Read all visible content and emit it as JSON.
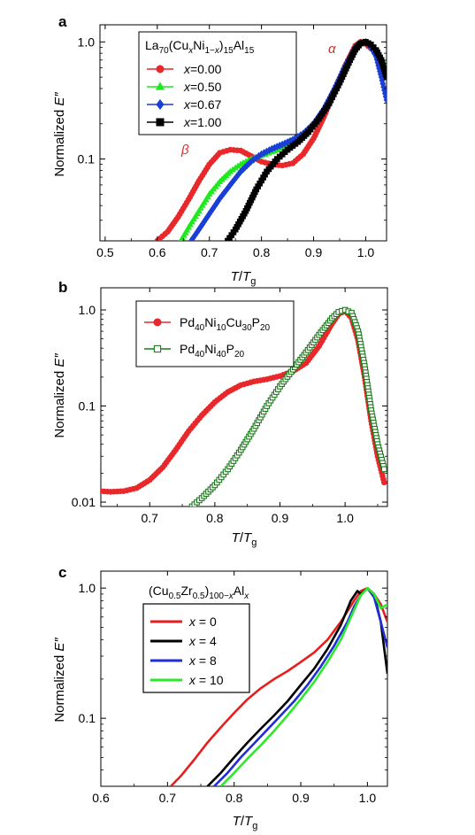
{
  "figure": {
    "background": "#ffffff"
  },
  "chart_data": [
    {
      "panel_label": "a",
      "type": "line",
      "title": "",
      "xlabel": "T/Tg",
      "ylabel": "Normalized E''",
      "xlim": [
        0.49,
        1.04
      ],
      "ylim": [
        0.02,
        1.4
      ],
      "yscale": "log",
      "grid": false,
      "xticks": [
        0.5,
        0.6,
        0.7,
        0.8,
        0.9,
        1.0
      ],
      "xtick_labels": [
        "0.5",
        "0.6",
        "0.7",
        "0.8",
        "0.9",
        "1.0"
      ],
      "yticks": [
        0.1,
        1.0
      ],
      "ytick_labels": [
        "0.1",
        "1.0"
      ],
      "legend_title": "La70(CuxNi1−x)15Al15",
      "legend_position": "top-left",
      "annotations": [
        {
          "text": "α",
          "x": 0.948,
          "y": 0.98,
          "color": "#c0392b"
        },
        {
          "text": "β",
          "x": 0.672,
          "y": 0.115,
          "color": "#e03030"
        }
      ],
      "series": [
        {
          "name": "x=0.00",
          "color": "#e8282b",
          "marker": "circle",
          "marker_fill": "filled",
          "x": [
            0.6,
            0.62,
            0.64,
            0.66,
            0.68,
            0.7,
            0.72,
            0.74,
            0.76,
            0.78,
            0.8,
            0.82,
            0.84,
            0.86,
            0.88,
            0.9,
            0.92,
            0.94,
            0.96,
            0.98,
            0.99,
            1.0,
            1.01,
            1.02,
            1.03,
            1.04
          ],
          "y": [
            0.02,
            0.024,
            0.032,
            0.045,
            0.065,
            0.09,
            0.113,
            0.12,
            0.118,
            0.106,
            0.095,
            0.09,
            0.088,
            0.092,
            0.11,
            0.15,
            0.23,
            0.38,
            0.62,
            0.93,
            1.0,
            0.96,
            0.88,
            0.82,
            0.7,
            0.55
          ]
        },
        {
          "name": "x=0.50",
          "color": "#1ee81e",
          "marker": "triangle",
          "marker_fill": "filled",
          "x": [
            0.645,
            0.66,
            0.68,
            0.7,
            0.72,
            0.74,
            0.76,
            0.78,
            0.8,
            0.82,
            0.84,
            0.86,
            0.88,
            0.9,
            0.92,
            0.94,
            0.96,
            0.98,
            0.99,
            1.0,
            1.01,
            1.02,
            1.03,
            1.04
          ],
          "y": [
            0.02,
            0.026,
            0.036,
            0.05,
            0.064,
            0.078,
            0.09,
            0.1,
            0.107,
            0.115,
            0.125,
            0.14,
            0.16,
            0.2,
            0.27,
            0.4,
            0.62,
            0.9,
            0.98,
            1.0,
            0.93,
            0.85,
            0.72,
            0.6
          ]
        },
        {
          "name": "x=0.67",
          "color": "#1a3fd6",
          "marker": "diamond",
          "marker_fill": "filled",
          "x": [
            0.665,
            0.68,
            0.7,
            0.72,
            0.74,
            0.76,
            0.78,
            0.8,
            0.82,
            0.84,
            0.86,
            0.88,
            0.9,
            0.92,
            0.94,
            0.96,
            0.98,
            0.99,
            1.0,
            1.01,
            1.02,
            1.03,
            1.04
          ],
          "y": [
            0.02,
            0.025,
            0.034,
            0.046,
            0.06,
            0.078,
            0.095,
            0.11,
            0.122,
            0.133,
            0.146,
            0.165,
            0.2,
            0.27,
            0.4,
            0.62,
            0.9,
            0.98,
            1.0,
            0.9,
            0.75,
            0.5,
            0.32
          ]
        },
        {
          "name": "x=1.00",
          "color": "#000000",
          "marker": "square",
          "marker_fill": "filled",
          "x": [
            0.735,
            0.75,
            0.77,
            0.79,
            0.81,
            0.83,
            0.85,
            0.87,
            0.89,
            0.91,
            0.93,
            0.95,
            0.97,
            0.98,
            0.99,
            1.0,
            1.01,
            1.02,
            1.03,
            1.04
          ],
          "y": [
            0.02,
            0.025,
            0.036,
            0.055,
            0.078,
            0.1,
            0.12,
            0.14,
            0.17,
            0.22,
            0.3,
            0.45,
            0.7,
            0.86,
            0.97,
            1.0,
            0.95,
            0.85,
            0.7,
            0.5
          ]
        }
      ]
    },
    {
      "panel_label": "b",
      "type": "line",
      "title": "",
      "xlabel": "T/Tg",
      "ylabel": "Normalized E''",
      "xlim": [
        0.625,
        1.065
      ],
      "ylim": [
        0.009,
        1.7
      ],
      "yscale": "log",
      "grid": false,
      "xticks": [
        0.7,
        0.8,
        0.9,
        1.0
      ],
      "xtick_labels": [
        "0.7",
        "0.8",
        "0.9",
        "1.0"
      ],
      "yticks": [
        0.01,
        0.1,
        1.0
      ],
      "ytick_labels": [
        "0.01",
        "0.1",
        "1.0"
      ],
      "legend_position": "top-left",
      "series": [
        {
          "name": "Pd40Ni10Cu30P20",
          "color": "#e8282b",
          "marker": "circle",
          "marker_fill": "filled",
          "x": [
            0.625,
            0.64,
            0.66,
            0.68,
            0.7,
            0.72,
            0.74,
            0.76,
            0.78,
            0.8,
            0.82,
            0.84,
            0.86,
            0.88,
            0.9,
            0.92,
            0.94,
            0.96,
            0.98,
            0.99,
            1.0,
            1.01,
            1.02,
            1.03,
            1.04,
            1.05,
            1.06
          ],
          "y": [
            0.013,
            0.0128,
            0.013,
            0.014,
            0.017,
            0.023,
            0.035,
            0.055,
            0.08,
            0.11,
            0.14,
            0.165,
            0.18,
            0.19,
            0.205,
            0.23,
            0.28,
            0.42,
            0.72,
            0.9,
            0.98,
            0.82,
            0.48,
            0.2,
            0.07,
            0.03,
            0.016
          ]
        },
        {
          "name": "Pd40Ni40P20",
          "color": "#1b7a1b",
          "marker": "square",
          "marker_fill": "open",
          "x": [
            0.765,
            0.78,
            0.8,
            0.82,
            0.84,
            0.86,
            0.88,
            0.9,
            0.92,
            0.94,
            0.96,
            0.98,
            0.99,
            1.0,
            1.01,
            1.02,
            1.03,
            1.04,
            1.05,
            1.06
          ],
          "y": [
            0.009,
            0.011,
            0.015,
            0.022,
            0.035,
            0.058,
            0.1,
            0.16,
            0.24,
            0.36,
            0.55,
            0.82,
            0.95,
            1.0,
            0.93,
            0.6,
            0.26,
            0.09,
            0.04,
            0.022
          ]
        }
      ]
    },
    {
      "panel_label": "c",
      "type": "line",
      "title": "",
      "xlabel": "T/Tg",
      "ylabel": "Normalized E''",
      "xlim": [
        0.6,
        1.03
      ],
      "ylim": [
        0.03,
        1.35
      ],
      "yscale": "log",
      "grid": false,
      "xticks": [
        0.6,
        0.7,
        0.8,
        0.9,
        1.0
      ],
      "xtick_labels": [
        "0.6",
        "0.7",
        "0.8",
        "0.9",
        "1.0"
      ],
      "yticks": [
        0.1,
        1.0
      ],
      "ytick_labels": [
        "0.1",
        "1.0"
      ],
      "legend_title": "(Cu0.5Zr0.5)100−xAlx",
      "legend_position": "top-left",
      "series": [
        {
          "name": "x = 0",
          "color": "#e81e1e",
          "marker": "none",
          "x": [
            0.705,
            0.72,
            0.74,
            0.76,
            0.78,
            0.8,
            0.82,
            0.84,
            0.86,
            0.88,
            0.9,
            0.92,
            0.94,
            0.96,
            0.98,
            0.99,
            1.0,
            1.01,
            1.02,
            1.03
          ],
          "y": [
            0.03,
            0.036,
            0.048,
            0.065,
            0.085,
            0.11,
            0.14,
            0.17,
            0.2,
            0.23,
            0.27,
            0.32,
            0.4,
            0.55,
            0.8,
            0.95,
            1.0,
            0.9,
            0.75,
            0.55
          ]
        },
        {
          "name": "x = 4",
          "color": "#000000",
          "marker": "none",
          "x": [
            0.76,
            0.78,
            0.8,
            0.82,
            0.84,
            0.86,
            0.88,
            0.9,
            0.92,
            0.94,
            0.96,
            0.975,
            0.985,
            0.99,
            1.0,
            1.01,
            1.02,
            1.03
          ],
          "y": [
            0.03,
            0.038,
            0.05,
            0.065,
            0.083,
            0.105,
            0.135,
            0.18,
            0.24,
            0.34,
            0.52,
            0.8,
            0.95,
            0.9,
            1.0,
            0.9,
            0.55,
            0.22
          ]
        },
        {
          "name": "x = 8",
          "color": "#1f2ed6",
          "marker": "none",
          "x": [
            0.77,
            0.79,
            0.81,
            0.83,
            0.85,
            0.87,
            0.89,
            0.91,
            0.93,
            0.95,
            0.97,
            0.98,
            0.99,
            1.0,
            1.01,
            1.02,
            1.03
          ],
          "y": [
            0.03,
            0.038,
            0.05,
            0.064,
            0.082,
            0.105,
            0.135,
            0.18,
            0.25,
            0.36,
            0.55,
            0.72,
            0.88,
            1.0,
            0.85,
            0.55,
            0.35
          ]
        },
        {
          "name": "x = 10",
          "color": "#2bea2b",
          "marker": "none",
          "x": [
            0.78,
            0.8,
            0.82,
            0.84,
            0.86,
            0.88,
            0.9,
            0.92,
            0.94,
            0.96,
            0.98,
            0.99,
            1.0,
            1.01,
            1.02,
            1.03
          ],
          "y": [
            0.03,
            0.038,
            0.049,
            0.062,
            0.08,
            0.105,
            0.14,
            0.19,
            0.27,
            0.4,
            0.68,
            0.88,
            1.0,
            0.9,
            0.7,
            0.75
          ]
        }
      ]
    }
  ]
}
